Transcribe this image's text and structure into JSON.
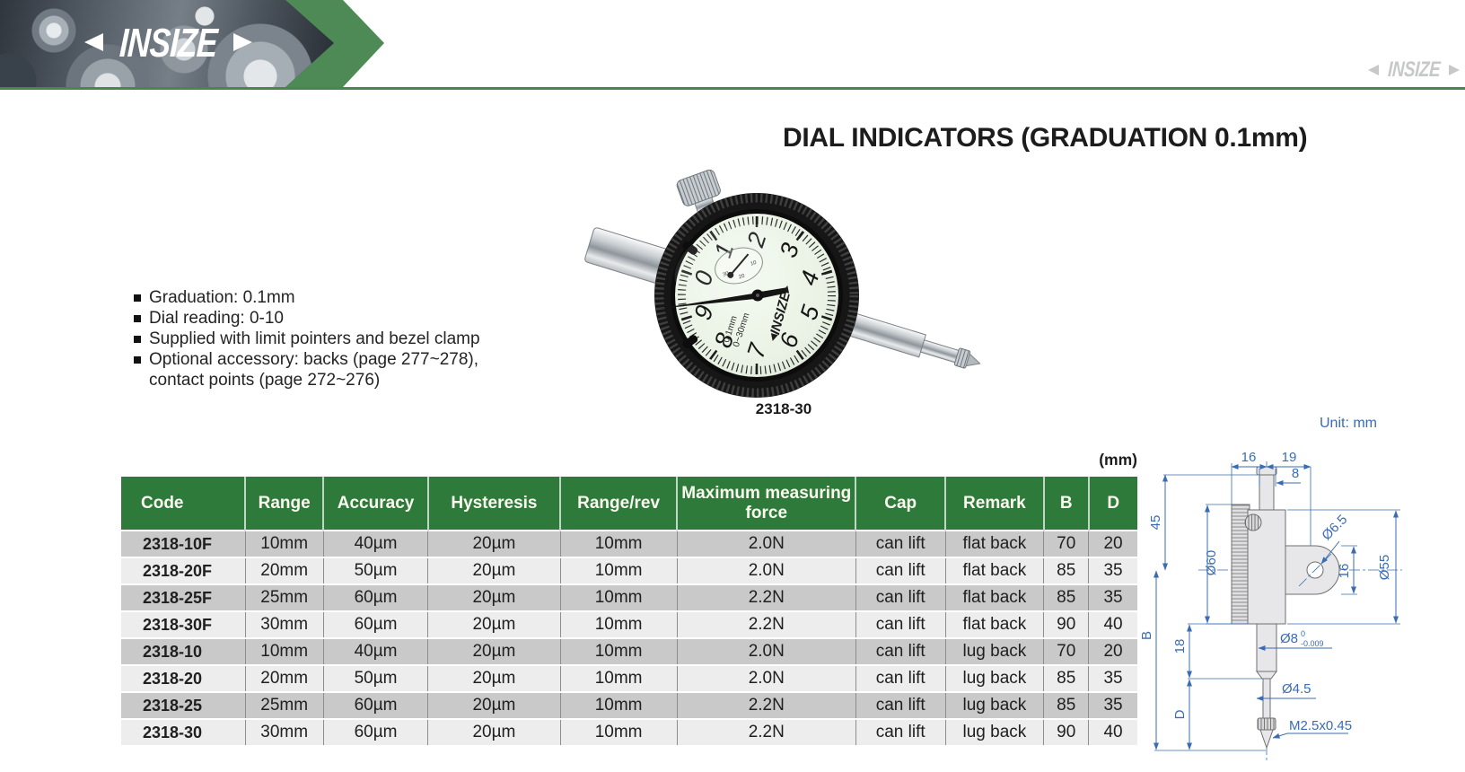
{
  "header": {
    "logo": "INSIZE",
    "watermark": "INSIZE"
  },
  "page": {
    "title": "DIAL INDICATORS (GRADUATION 0.1mm)",
    "unit_note": "(mm)"
  },
  "features": [
    {
      "text": "Graduation: 0.1mm"
    },
    {
      "text": "Dial reading: 0-10"
    },
    {
      "text": "Supplied with limit pointers and bezel clamp"
    },
    {
      "text": "Optional accessory: backs (page 277~278),",
      "text2": "contact points (page 272~276)"
    }
  ],
  "product": {
    "caption": "2318-30",
    "dial_brand": "INSIZE",
    "dial_numbers": [
      "0",
      "1",
      "2",
      "3",
      "4",
      "5",
      "6",
      "7",
      "8",
      "9"
    ],
    "dial_markings": [
      "0.1mm",
      "0~30mm"
    ],
    "subdial_labels": [
      "30",
      "20",
      "10"
    ]
  },
  "table": {
    "columns": [
      "Code",
      "Range",
      "Accuracy",
      "Hysteresis",
      "Range/rev",
      "Maximum measuring force",
      "Cap",
      "Remark",
      "B",
      "D"
    ],
    "rows": [
      [
        "2318-10F",
        "10mm",
        "40µm",
        "20µm",
        "10mm",
        "2.0N",
        "can lift",
        "flat back",
        "70",
        "20"
      ],
      [
        "2318-20F",
        "20mm",
        "50µm",
        "20µm",
        "10mm",
        "2.0N",
        "can lift",
        "flat back",
        "85",
        "35"
      ],
      [
        "2318-25F",
        "25mm",
        "60µm",
        "20µm",
        "10mm",
        "2.2N",
        "can lift",
        "flat back",
        "85",
        "35"
      ],
      [
        "2318-30F",
        "30mm",
        "60µm",
        "20µm",
        "10mm",
        "2.2N",
        "can lift",
        "flat back",
        "90",
        "40"
      ],
      [
        "2318-10",
        "10mm",
        "40µm",
        "20µm",
        "10mm",
        "2.0N",
        "can lift",
        "lug back",
        "70",
        "20"
      ],
      [
        "2318-20",
        "20mm",
        "50µm",
        "20µm",
        "10mm",
        "2.0N",
        "can lift",
        "lug back",
        "85",
        "35"
      ],
      [
        "2318-25",
        "25mm",
        "60µm",
        "20µm",
        "10mm",
        "2.2N",
        "can lift",
        "lug back",
        "85",
        "35"
      ],
      [
        "2318-30",
        "30mm",
        "60µm",
        "20µm",
        "10mm",
        "2.2N",
        "can lift",
        "lug back",
        "90",
        "40"
      ]
    ]
  },
  "drawing": {
    "unit_label": "Unit: mm",
    "dims": {
      "top16": "16",
      "top19": "19",
      "stem8": "8",
      "h45": "45",
      "dia60": "Ø60",
      "dia65": "Ø6.5",
      "lug16": "16",
      "dia55": "Ø55",
      "b": "B",
      "len18": "18",
      "d": "D",
      "dia8": "Ø8",
      "tol_top": "0",
      "tol_bot": "-0.009",
      "dia45": "Ø4.5",
      "thread": "M2.5x0.45"
    }
  },
  "colors": {
    "header_green": "#2d7a3a",
    "chevron_green": "#4d8a56",
    "row_dark": "#c9c9c9",
    "row_light": "#ededed",
    "dim_blue": "#3a6cb4"
  }
}
